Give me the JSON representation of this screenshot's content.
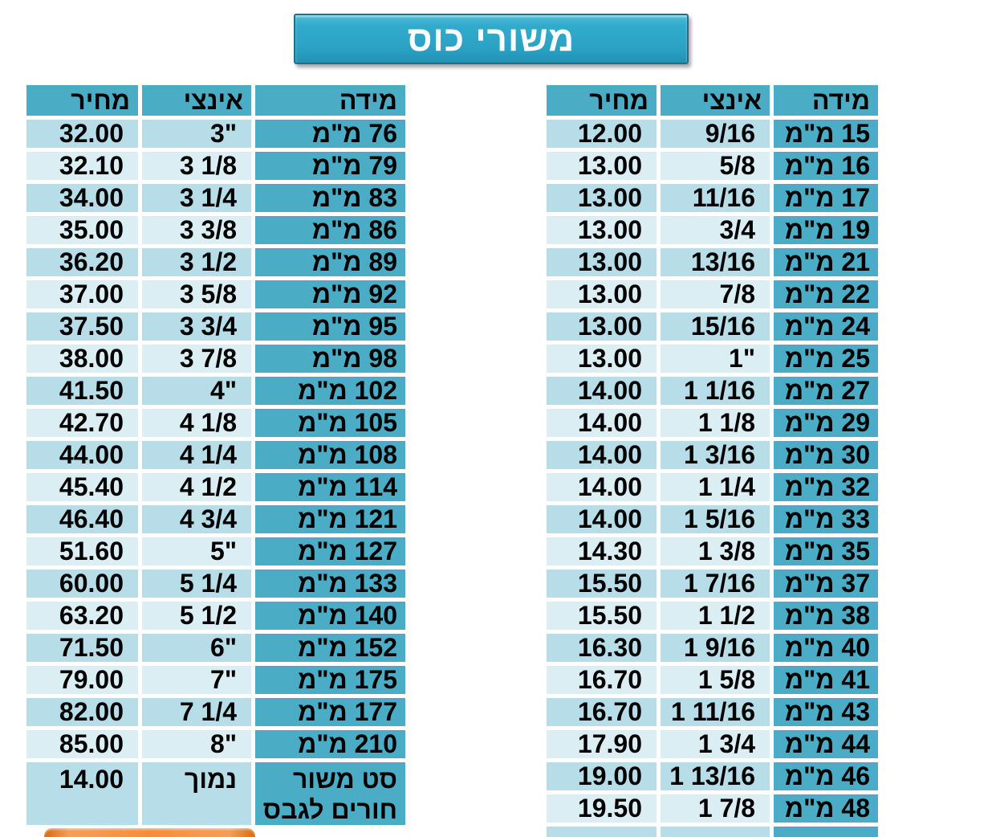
{
  "title": {
    "label": "משורי כוס"
  },
  "colors": {
    "header_teal": "#4BACC6",
    "band_dark": "#B7DEE8",
    "band_light": "#DAEEF3",
    "title_fill": "#2EA8C9",
    "title_border": "#1E6F8E",
    "orange_banner": "#F78C38",
    "text": "#000000",
    "title_text": "#FFFFFF"
  },
  "tables": {
    "right": {
      "headers": {
        "size": "מידה",
        "inch": "אינצי",
        "price": "מחיר"
      },
      "rows": [
        {
          "size": "15 מ\"מ",
          "inch": "9/16",
          "price": "12.00"
        },
        {
          "size": "16 מ\"מ",
          "inch": "5/8",
          "price": "13.00"
        },
        {
          "size": "17 מ\"מ",
          "inch": "11/16",
          "price": "13.00"
        },
        {
          "size": "19 מ\"מ",
          "inch": "3/4",
          "price": "13.00"
        },
        {
          "size": "21 מ\"מ",
          "inch": "13/16",
          "price": "13.00"
        },
        {
          "size": "22 מ\"מ",
          "inch": "7/8",
          "price": "13.00"
        },
        {
          "size": "24 מ\"מ",
          "inch": "15/16",
          "price": "13.00"
        },
        {
          "size": "25 מ\"מ",
          "inch": "1\"",
          "price": "13.00"
        },
        {
          "size": "27 מ\"מ",
          "inch": "1 1/16",
          "price": "14.00"
        },
        {
          "size": "29 מ\"מ",
          "inch": "1 1/8",
          "price": "14.00"
        },
        {
          "size": "30 מ\"מ",
          "inch": "1 3/16",
          "price": "14.00"
        },
        {
          "size": "32 מ\"מ",
          "inch": "1 1/4",
          "price": "14.00"
        },
        {
          "size": "33 מ\"מ",
          "inch": "1 5/16",
          "price": "14.00"
        },
        {
          "size": "35 מ\"מ",
          "inch": "1 3/8",
          "price": "14.30"
        },
        {
          "size": "37 מ\"מ",
          "inch": "1 7/16",
          "price": "15.50"
        },
        {
          "size": "38 מ\"מ",
          "inch": "1 1/2",
          "price": "15.50"
        },
        {
          "size": "40 מ\"מ",
          "inch": "1 9/16",
          "price": "16.30"
        },
        {
          "size": "41 מ\"מ",
          "inch": "1 5/8",
          "price": "16.70"
        },
        {
          "size": "43 מ\"מ",
          "inch": "1 11/16",
          "price": "16.70"
        },
        {
          "size": "44 מ\"מ",
          "inch": "1 3/4",
          "price": "17.90"
        },
        {
          "size": "46 מ\"מ",
          "inch": "1 13/16",
          "price": "19.00"
        },
        {
          "size": "48 מ\"מ",
          "inch": "1 7/8",
          "price": "19.50"
        },
        {
          "size": "",
          "inch": "",
          "price": "",
          "partial": true
        }
      ]
    },
    "left": {
      "headers": {
        "size": "מידה",
        "inch": "אינצי",
        "price": "מחיר"
      },
      "rows": [
        {
          "size": "76 מ\"מ",
          "inch": "3\"",
          "price": "32.00"
        },
        {
          "size": "79 מ\"מ",
          "inch": "3 1/8",
          "price": "32.10"
        },
        {
          "size": "83 מ\"מ",
          "inch": "3 1/4",
          "price": "34.00"
        },
        {
          "size": "86 מ\"מ",
          "inch": "3 3/8",
          "price": "35.00"
        },
        {
          "size": "89 מ\"מ",
          "inch": "3 1/2",
          "price": "36.20"
        },
        {
          "size": "92 מ\"מ",
          "inch": "3 5/8",
          "price": "37.00"
        },
        {
          "size": "95 מ\"מ",
          "inch": "3 3/4",
          "price": "37.50"
        },
        {
          "size": "98 מ\"מ",
          "inch": "3 7/8",
          "price": "38.00"
        },
        {
          "size": "102 מ\"מ",
          "inch": "4\"",
          "price": "41.50"
        },
        {
          "size": "105 מ\"מ",
          "inch": "4 1/8",
          "price": "42.70"
        },
        {
          "size": "108 מ\"מ",
          "inch": "4 1/4",
          "price": "44.00"
        },
        {
          "size": "114 מ\"מ",
          "inch": "4 1/2",
          "price": "45.40"
        },
        {
          "size": "121 מ\"מ",
          "inch": "4 3/4",
          "price": "46.40"
        },
        {
          "size": "127 מ\"מ",
          "inch": "5\"",
          "price": "51.60"
        },
        {
          "size": "133 מ\"מ",
          "inch": "5 1/4",
          "price": "60.00"
        },
        {
          "size": "140 מ\"מ",
          "inch": "5 1/2",
          "price": "63.20"
        },
        {
          "size": "152 מ\"מ",
          "inch": "6\"",
          "price": "71.50"
        },
        {
          "size": "175 מ\"מ",
          "inch": "7\"",
          "price": "79.00"
        },
        {
          "size": "177 מ\"מ",
          "inch": "7 1/4",
          "price": "82.00"
        },
        {
          "size": "210 מ\"מ",
          "inch": "8\"",
          "price": "85.00"
        },
        {
          "size": "סט משור\nחורים לגבס",
          "inch": "נמוך",
          "price": "14.00",
          "tall": true
        }
      ]
    }
  }
}
